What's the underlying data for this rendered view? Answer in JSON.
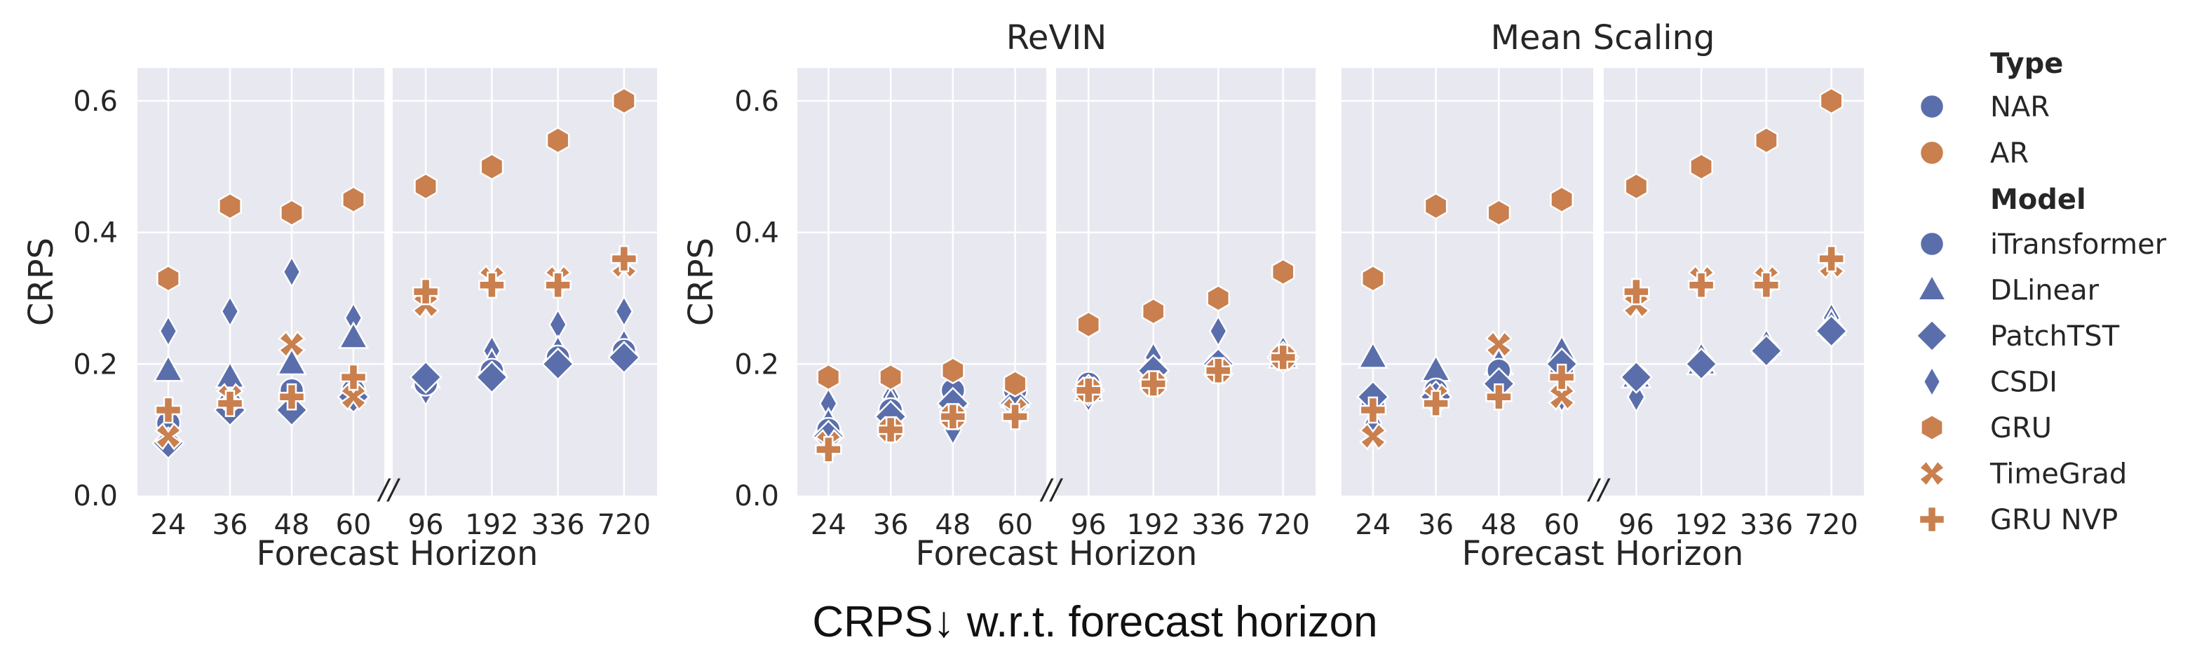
{
  "caption": "CRPS↓ w.r.t. forecast horizon",
  "colors": {
    "NAR": "#5a6eab",
    "AR": "#c97f4e",
    "panel_bg": "#e8e8f0",
    "grid": "#ffffff"
  },
  "legend": {
    "type_title": "Type",
    "types": [
      {
        "label": "NAR",
        "color_key": "NAR",
        "marker": "circle"
      },
      {
        "label": "AR",
        "color_key": "AR",
        "marker": "circle"
      }
    ],
    "model_title": "Model",
    "models": [
      {
        "label": "iTransformer",
        "color_key": "NAR",
        "marker": "circle"
      },
      {
        "label": "DLinear",
        "color_key": "NAR",
        "marker": "triangle"
      },
      {
        "label": "PatchTST",
        "color_key": "NAR",
        "marker": "diamond"
      },
      {
        "label": "CSDI",
        "color_key": "NAR",
        "marker": "thin-diamond"
      },
      {
        "label": "GRU",
        "color_key": "AR",
        "marker": "hexagon"
      },
      {
        "label": "TimeGrad",
        "color_key": "AR",
        "marker": "x"
      },
      {
        "label": "GRU NVP",
        "color_key": "AR",
        "marker": "plus"
      }
    ]
  },
  "chart_data": [
    {
      "type": "scatter",
      "title": "",
      "xlabel": "Forecast Horizon",
      "ylabel": "CRPS",
      "ylim": [
        0,
        0.65
      ],
      "yticks": [
        "0.0",
        "0.2",
        "0.4",
        "0.6"
      ],
      "grid": true,
      "x_break": "//",
      "x": [
        "24",
        "36",
        "48",
        "60",
        "96",
        "192",
        "336",
        "720"
      ],
      "series": [
        {
          "name": "iTransformer",
          "values": [
            0.11,
            0.14,
            0.16,
            0.16,
            0.17,
            0.19,
            0.21,
            0.22
          ]
        },
        {
          "name": "DLinear",
          "values": [
            0.19,
            0.18,
            0.2,
            0.24,
            0.18,
            0.2,
            0.22,
            0.23
          ]
        },
        {
          "name": "PatchTST",
          "values": [
            0.08,
            0.13,
            0.13,
            0.15,
            0.18,
            0.18,
            0.2,
            0.21
          ]
        },
        {
          "name": "CSDI",
          "values": [
            0.25,
            0.28,
            0.34,
            0.27,
            0.16,
            0.22,
            0.26,
            0.28
          ]
        },
        {
          "name": "GRU",
          "values": [
            0.33,
            0.44,
            0.43,
            0.45,
            0.47,
            0.5,
            0.54,
            0.6
          ]
        },
        {
          "name": "TimeGrad",
          "values": [
            0.09,
            0.15,
            0.23,
            0.15,
            0.29,
            0.33,
            0.33,
            0.35
          ]
        },
        {
          "name": "GRU NVP",
          "values": [
            0.13,
            0.14,
            0.15,
            0.18,
            0.31,
            0.32,
            0.32,
            0.36
          ]
        }
      ]
    },
    {
      "type": "scatter",
      "title": "ReVIN",
      "xlabel": "Forecast Horizon",
      "ylabel": "CRPS",
      "ylim": [
        0,
        0.65
      ],
      "yticks": [
        "0.0",
        "0.2",
        "0.4",
        "0.6"
      ],
      "grid": true,
      "x_break": "//",
      "x": [
        "24",
        "36",
        "48",
        "60",
        "96",
        "192",
        "336",
        "720"
      ],
      "series": [
        {
          "name": "iTransformer",
          "values": [
            0.1,
            0.13,
            0.16,
            0.16,
            0.17,
            0.19,
            0.2,
            0.21
          ]
        },
        {
          "name": "DLinear",
          "values": [
            0.11,
            0.14,
            0.15,
            0.15,
            0.16,
            0.19,
            0.2,
            0.21
          ]
        },
        {
          "name": "PatchTST",
          "values": [
            0.09,
            0.12,
            0.14,
            0.14,
            0.16,
            0.19,
            0.2,
            0.21
          ]
        },
        {
          "name": "CSDI",
          "values": [
            0.14,
            0.15,
            0.1,
            0.15,
            0.15,
            0.21,
            0.25,
            0.22
          ]
        },
        {
          "name": "GRU",
          "values": [
            0.18,
            0.18,
            0.19,
            0.17,
            0.26,
            0.28,
            0.3,
            0.34
          ]
        },
        {
          "name": "TimeGrad",
          "values": [
            0.08,
            0.1,
            0.12,
            0.13,
            0.16,
            0.17,
            0.19,
            0.21
          ]
        },
        {
          "name": "GRU NVP",
          "values": [
            0.07,
            0.1,
            0.12,
            0.12,
            0.16,
            0.17,
            0.19,
            0.21
          ]
        }
      ]
    },
    {
      "type": "scatter",
      "title": "Mean Scaling",
      "xlabel": "Forecast Horizon",
      "ylabel": "",
      "ylim": [
        0,
        0.65
      ],
      "yticks": [],
      "grid": true,
      "x_break": "//",
      "x": [
        "24",
        "36",
        "48",
        "60",
        "96",
        "192",
        "336",
        "720"
      ],
      "series": [
        {
          "name": "iTransformer",
          "values": [
            0.14,
            0.16,
            0.19,
            0.19,
            0.18,
            0.2,
            0.22,
            0.25
          ]
        },
        {
          "name": "DLinear",
          "values": [
            0.21,
            0.19,
            0.2,
            0.22,
            0.18,
            0.2,
            0.23,
            0.26
          ]
        },
        {
          "name": "PatchTST",
          "values": [
            0.15,
            0.15,
            0.17,
            0.2,
            0.18,
            0.2,
            0.22,
            0.25
          ]
        },
        {
          "name": "CSDI",
          "values": [
            0.11,
            0.15,
            0.15,
            0.15,
            0.15,
            0.21,
            0.23,
            0.27
          ]
        },
        {
          "name": "GRU",
          "values": [
            0.33,
            0.44,
            0.43,
            0.45,
            0.47,
            0.5,
            0.54,
            0.6
          ]
        },
        {
          "name": "TimeGrad",
          "values": [
            0.09,
            0.15,
            0.23,
            0.15,
            0.29,
            0.33,
            0.33,
            0.35
          ]
        },
        {
          "name": "GRU NVP",
          "values": [
            0.13,
            0.14,
            0.15,
            0.18,
            0.31,
            0.32,
            0.32,
            0.36
          ]
        }
      ]
    }
  ]
}
